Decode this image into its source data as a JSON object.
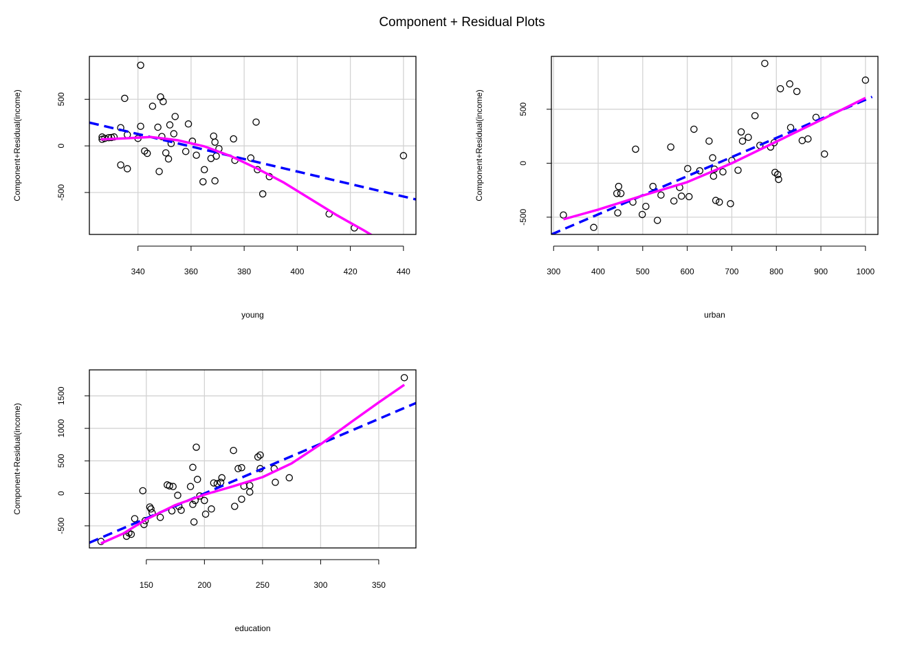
{
  "title": "Component + Residual Plots",
  "chart_data": [
    {
      "type": "scatter",
      "xlabel": "young",
      "ylabel": "Component+Residual(income)",
      "xlim": [
        321.7,
        444.7
      ],
      "ylim": [
        -950,
        960
      ],
      "xticks": [
        340,
        360,
        380,
        400,
        420,
        440
      ],
      "yticks": [
        -500,
        0,
        500
      ],
      "grid": true,
      "points": [
        [
          326.5,
          95
        ],
        [
          326.5,
          70
        ],
        [
          327.5,
          80
        ],
        [
          329,
          88
        ],
        [
          330,
          90
        ],
        [
          331,
          96
        ],
        [
          333.5,
          195
        ],
        [
          333.5,
          -205
        ],
        [
          335,
          510
        ],
        [
          336,
          120
        ],
        [
          336,
          -245
        ],
        [
          340,
          80
        ],
        [
          341,
          865
        ],
        [
          341,
          210
        ],
        [
          342.5,
          -55
        ],
        [
          343.5,
          -80
        ],
        [
          345.5,
          425
        ],
        [
          347.5,
          200
        ],
        [
          348,
          -275
        ],
        [
          348.5,
          525
        ],
        [
          349,
          100
        ],
        [
          349.5,
          475
        ],
        [
          350.5,
          -75
        ],
        [
          351.5,
          -140
        ],
        [
          352,
          225
        ],
        [
          352.5,
          25
        ],
        [
          353.5,
          130
        ],
        [
          354,
          315
        ],
        [
          358,
          -60
        ],
        [
          359,
          235
        ],
        [
          360.5,
          50
        ],
        [
          362,
          -100
        ],
        [
          364.5,
          -385
        ],
        [
          365,
          -255
        ],
        [
          367.5,
          -135
        ],
        [
          368.5,
          105
        ],
        [
          369,
          40
        ],
        [
          369,
          -375
        ],
        [
          369.5,
          -110
        ],
        [
          370.5,
          -30
        ],
        [
          376,
          75
        ],
        [
          376.5,
          -155
        ],
        [
          382.5,
          -130
        ],
        [
          384.5,
          255
        ],
        [
          385,
          -255
        ],
        [
          387,
          -515
        ],
        [
          389.5,
          -330
        ],
        [
          412,
          -730
        ],
        [
          421.5,
          -880
        ],
        [
          440,
          -105
        ]
      ],
      "lines": [
        {
          "name": "",
          "color": "#0000ff",
          "style": "dashed",
          "x": [
            321.7,
            444.7
          ],
          "y": [
            250,
            -575
          ]
        },
        {
          "name": "",
          "color": "#ff00ff",
          "style": "solid",
          "x": [
            326,
            335,
            345,
            355,
            365,
            375,
            385,
            395,
            405,
            415,
            425,
            428.5
          ],
          "y": [
            70,
            80,
            95,
            60,
            -5,
            -110,
            -245,
            -395,
            -570,
            -745,
            -905,
            -965
          ]
        }
      ]
    },
    {
      "type": "scatter",
      "xlabel": "urban",
      "ylabel": "Component+Residual(income)",
      "xlim": [
        295,
        1028
      ],
      "ylim": [
        -660,
        990
      ],
      "xticks": [
        300,
        400,
        500,
        600,
        700,
        800,
        900,
        1000
      ],
      "yticks": [
        -500,
        0,
        500
      ],
      "grid": true,
      "points": [
        [
          322,
          -480
        ],
        [
          390,
          -595
        ],
        [
          442,
          -280
        ],
        [
          444,
          -460
        ],
        [
          446,
          -215
        ],
        [
          451,
          -280
        ],
        [
          478,
          -360
        ],
        [
          484,
          130
        ],
        [
          499,
          -475
        ],
        [
          507,
          -400
        ],
        [
          523,
          -215
        ],
        [
          533,
          -530
        ],
        [
          541,
          -295
        ],
        [
          563,
          150
        ],
        [
          570,
          -350
        ],
        [
          583,
          -225
        ],
        [
          587,
          -305
        ],
        [
          601,
          -50
        ],
        [
          604,
          -310
        ],
        [
          615,
          315
        ],
        [
          628,
          -70
        ],
        [
          649,
          205
        ],
        [
          657,
          50
        ],
        [
          659,
          -120
        ],
        [
          661,
          -55
        ],
        [
          664,
          -345
        ],
        [
          672,
          -360
        ],
        [
          680,
          -80
        ],
        [
          697,
          -375
        ],
        [
          700,
          25
        ],
        [
          714,
          -65
        ],
        [
          721,
          290
        ],
        [
          724,
          205
        ],
        [
          737,
          240
        ],
        [
          752,
          440
        ],
        [
          763,
          165
        ],
        [
          774,
          925
        ],
        [
          787,
          150
        ],
        [
          795,
          190
        ],
        [
          797,
          -85
        ],
        [
          803,
          -105
        ],
        [
          805,
          -150
        ],
        [
          809,
          690
        ],
        [
          830,
          735
        ],
        [
          832,
          330
        ],
        [
          846,
          665
        ],
        [
          858,
          210
        ],
        [
          871,
          225
        ],
        [
          889,
          425
        ],
        [
          908,
          85
        ],
        [
          1000,
          770
        ]
      ],
      "lines": [
        {
          "name": "",
          "color": "#0000ff",
          "style": "dashed",
          "x": [
            295,
            1015
          ],
          "y": [
            -660,
            615
          ]
        },
        {
          "name": "",
          "color": "#ff00ff",
          "style": "solid",
          "x": [
            322,
            400,
            500,
            600,
            700,
            800,
            900,
            1000
          ],
          "y": [
            -520,
            -430,
            -300,
            -175,
            0,
            200,
            400,
            605
          ]
        }
      ]
    },
    {
      "type": "scatter",
      "xlabel": "education",
      "ylabel": "Component+Residual(income)",
      "xlim": [
        101,
        382
      ],
      "ylim": [
        -840,
        1900
      ],
      "xticks": [
        150,
        200,
        250,
        300,
        350
      ],
      "yticks": [
        -500,
        0,
        500,
        1000,
        1500
      ],
      "grid": true,
      "points": [
        [
          111,
          -740
        ],
        [
          133,
          -660
        ],
        [
          135,
          -610
        ],
        [
          137,
          -630
        ],
        [
          140,
          -390
        ],
        [
          147,
          40
        ],
        [
          148,
          -480
        ],
        [
          149,
          -420
        ],
        [
          153,
          -210
        ],
        [
          154,
          -240
        ],
        [
          155,
          -300
        ],
        [
          162,
          -370
        ],
        [
          168,
          130
        ],
        [
          170,
          115
        ],
        [
          172,
          -270
        ],
        [
          173,
          105
        ],
        [
          177,
          -30
        ],
        [
          178,
          -200
        ],
        [
          180,
          -260
        ],
        [
          188,
          105
        ],
        [
          190,
          400
        ],
        [
          190,
          -170
        ],
        [
          191,
          -440
        ],
        [
          192,
          -110
        ],
        [
          193,
          710
        ],
        [
          194,
          215
        ],
        [
          196,
          -40
        ],
        [
          200,
          -110
        ],
        [
          201,
          -320
        ],
        [
          206,
          -240
        ],
        [
          208,
          160
        ],
        [
          211,
          150
        ],
        [
          214,
          170
        ],
        [
          215,
          240
        ],
        [
          225,
          660
        ],
        [
          226,
          -200
        ],
        [
          229,
          380
        ],
        [
          232,
          395
        ],
        [
          232,
          -90
        ],
        [
          234,
          110
        ],
        [
          239,
          20
        ],
        [
          239,
          120
        ],
        [
          246,
          560
        ],
        [
          248,
          590
        ],
        [
          248,
          380
        ],
        [
          260,
          380
        ],
        [
          261,
          170
        ],
        [
          273,
          240
        ],
        [
          372,
          1780
        ]
      ],
      "lines": [
        {
          "name": "",
          "color": "#0000ff",
          "style": "dashed",
          "x": [
            101,
            382
          ],
          "y": [
            -760,
            1390
          ]
        },
        {
          "name": "",
          "color": "#ff00ff",
          "style": "solid",
          "x": [
            111,
            130,
            150,
            175,
            200,
            225,
            250,
            275,
            300,
            325,
            350,
            372
          ],
          "y": [
            -770,
            -620,
            -400,
            -180,
            -20,
            110,
            250,
            460,
            755,
            1080,
            1400,
            1670
          ]
        }
      ]
    }
  ]
}
